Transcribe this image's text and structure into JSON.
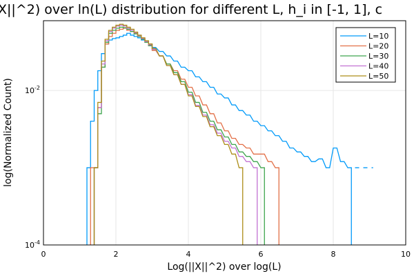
{
  "chart_data": {
    "type": "step-histogram",
    "title": "X||^2) over ln(L) distribution for different L, h_i in [-1, 1], c",
    "xlabel": "Log(||X||^2) over log(L)",
    "ylabel": "log(Normalized Count)",
    "xlim": [
      0,
      10
    ],
    "ylim": [
      0.0001,
      0.08
    ],
    "yscale": "log",
    "grid": true,
    "legend_position": "top-right",
    "x_ticks": [
      0,
      2,
      4,
      6,
      8,
      10
    ],
    "x_tick_labels": [
      "0",
      "2",
      "4",
      "6",
      "8",
      "10"
    ],
    "y_ticks": [
      0.0001,
      0.01
    ],
    "y_tick_labels": [
      {
        "base": "10",
        "exp": "-4"
      },
      {
        "base": "10",
        "exp": "-2"
      }
    ],
    "series": [
      {
        "name": "L=10",
        "color": "#009af9",
        "x": [
          1.2,
          1.3,
          1.4,
          1.5,
          1.6,
          1.7,
          1.8,
          1.9,
          2.0,
          2.1,
          2.2,
          2.3,
          2.4,
          2.5,
          2.6,
          2.7,
          2.8,
          2.9,
          3.0,
          3.2,
          3.4,
          3.6,
          3.8,
          4.0,
          4.2,
          4.4,
          4.6,
          4.8,
          5.0,
          5.2,
          5.4,
          5.6,
          5.8,
          6.0,
          6.2,
          6.4,
          6.6,
          6.8,
          7.0,
          7.2,
          7.4,
          7.6,
          7.8,
          8.0,
          8.2,
          8.4
        ],
        "y": [
          0.001,
          0.004,
          0.01,
          0.018,
          0.03,
          0.04,
          0.045,
          0.047,
          0.048,
          0.05,
          0.052,
          0.055,
          0.052,
          0.05,
          0.048,
          0.045,
          0.042,
          0.04,
          0.036,
          0.032,
          0.028,
          0.024,
          0.02,
          0.018,
          0.015,
          0.013,
          0.011,
          0.009,
          0.008,
          0.0065,
          0.0055,
          0.0048,
          0.004,
          0.0035,
          0.003,
          0.0026,
          0.0022,
          0.0018,
          0.0016,
          0.0014,
          0.0012,
          0.0013,
          0.001,
          0.0018,
          0.0012,
          0.001
        ],
        "dashed_tail_x": [
          8.6,
          9.1
        ]
      },
      {
        "name": "L=20",
        "color": "#e26f46",
        "x": [
          1.3,
          1.4,
          1.5,
          1.6,
          1.7,
          1.8,
          1.9,
          2.0,
          2.1,
          2.2,
          2.3,
          2.4,
          2.5,
          2.6,
          2.7,
          2.8,
          2.9,
          3.0,
          3.2,
          3.4,
          3.6,
          3.8,
          4.0,
          4.2,
          4.4,
          4.6,
          4.8,
          5.0,
          5.2,
          5.4,
          5.6,
          5.8,
          6.0,
          6.2,
          6.4
        ],
        "y": [
          0.001,
          0.001,
          0.006,
          0.02,
          0.04,
          0.05,
          0.055,
          0.06,
          0.062,
          0.064,
          0.06,
          0.058,
          0.055,
          0.05,
          0.046,
          0.042,
          0.038,
          0.033,
          0.028,
          0.022,
          0.018,
          0.014,
          0.011,
          0.0085,
          0.0065,
          0.005,
          0.0038,
          0.003,
          0.0024,
          0.002,
          0.0018,
          0.0015,
          0.0015,
          0.0012,
          0.001
        ]
      },
      {
        "name": "L=30",
        "color": "#3da44d",
        "x": [
          1.4,
          1.5,
          1.6,
          1.7,
          1.8,
          1.9,
          2.0,
          2.1,
          2.2,
          2.3,
          2.4,
          2.5,
          2.6,
          2.7,
          2.8,
          2.9,
          3.0,
          3.2,
          3.4,
          3.6,
          3.8,
          4.0,
          4.2,
          4.4,
          4.6,
          4.8,
          5.0,
          5.2,
          5.4,
          5.6,
          5.8,
          6.0
        ],
        "y": [
          0.001,
          0.005,
          0.02,
          0.042,
          0.055,
          0.06,
          0.064,
          0.066,
          0.065,
          0.062,
          0.058,
          0.054,
          0.05,
          0.046,
          0.042,
          0.038,
          0.034,
          0.028,
          0.022,
          0.017,
          0.013,
          0.0095,
          0.007,
          0.0052,
          0.004,
          0.0031,
          0.0025,
          0.002,
          0.0016,
          0.0014,
          0.0012,
          0.001
        ]
      },
      {
        "name": "L=40",
        "color": "#c271d2",
        "x": [
          1.4,
          1.5,
          1.6,
          1.7,
          1.8,
          1.9,
          2.0,
          2.1,
          2.2,
          2.3,
          2.4,
          2.5,
          2.6,
          2.7,
          2.8,
          2.9,
          3.0,
          3.2,
          3.4,
          3.6,
          3.8,
          4.0,
          4.2,
          4.4,
          4.6,
          4.8,
          5.0,
          5.2,
          5.4,
          5.6,
          5.8
        ],
        "y": [
          0.001,
          0.006,
          0.022,
          0.044,
          0.058,
          0.064,
          0.068,
          0.07,
          0.068,
          0.064,
          0.06,
          0.056,
          0.051,
          0.047,
          0.043,
          0.039,
          0.034,
          0.028,
          0.021,
          0.016,
          0.012,
          0.0088,
          0.0064,
          0.0048,
          0.0036,
          0.0028,
          0.0022,
          0.0018,
          0.0014,
          0.0012,
          0.001
        ]
      },
      {
        "name": "L=50",
        "color": "#ac8d18",
        "x": [
          1.4,
          1.5,
          1.6,
          1.7,
          1.8,
          1.9,
          2.0,
          2.1,
          2.2,
          2.3,
          2.4,
          2.5,
          2.6,
          2.7,
          2.8,
          2.9,
          3.0,
          3.2,
          3.4,
          3.6,
          3.8,
          4.0,
          4.2,
          4.4,
          4.6,
          4.8,
          5.0,
          5.2,
          5.4
        ],
        "y": [
          0.001,
          0.007,
          0.024,
          0.046,
          0.06,
          0.066,
          0.07,
          0.072,
          0.07,
          0.066,
          0.062,
          0.057,
          0.052,
          0.048,
          0.044,
          0.04,
          0.035,
          0.028,
          0.021,
          0.016,
          0.012,
          0.0085,
          0.0062,
          0.0046,
          0.0034,
          0.0026,
          0.002,
          0.0015,
          0.001
        ]
      }
    ]
  }
}
